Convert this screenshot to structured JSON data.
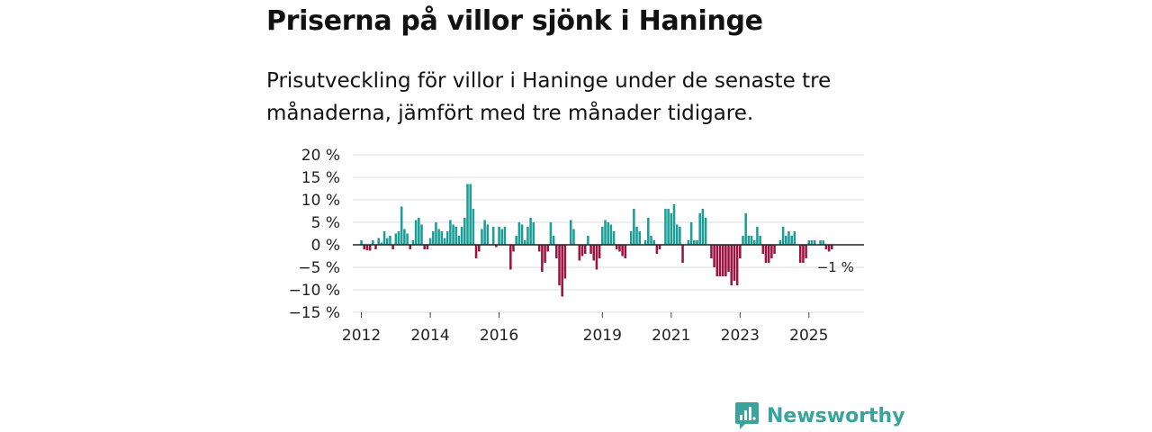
{
  "title": "Priserna på villor sjönk i Haninge",
  "subtitle": "Prisutveckling för villor i Haninge under de senaste tre månaderna, jämfört med tre månader tidigare.",
  "brand": "Newsworthy",
  "colors": {
    "positive": "#1a9e97",
    "negative": "#9c1442",
    "brand": "#3aa39e",
    "grid": "#dedede",
    "zero": "#222222"
  },
  "chart_data": {
    "type": "bar",
    "ylim": [
      -15,
      20
    ],
    "yticks": [
      20,
      15,
      10,
      5,
      0,
      -5,
      -10,
      -15
    ],
    "ytick_labels": [
      "20 %",
      "15 %",
      "10 %",
      "5 %",
      "0 %",
      "−5 %",
      "−10 %",
      "−15 %"
    ],
    "xlim": [
      2011.75,
      2026.6
    ],
    "xticks": [
      2012,
      2014,
      2016,
      2019,
      2021,
      2023,
      2025
    ],
    "xtick_labels": [
      "2012",
      "2014",
      "2016",
      "2019",
      "2021",
      "2023",
      "2025"
    ],
    "start": {
      "year": 2012,
      "month": 1
    },
    "values": [
      1,
      -1,
      -1.2,
      -1.3,
      1,
      -1,
      1.5,
      0.5,
      3,
      1.5,
      2,
      -1,
      2.5,
      3,
      8.5,
      3.5,
      2.5,
      -1,
      1,
      5.5,
      6,
      4.5,
      -1,
      -1,
      1.5,
      3,
      5,
      3.5,
      3,
      1.5,
      3,
      5.5,
      4.5,
      4,
      2,
      4,
      6,
      13.5,
      13.5,
      8,
      -3,
      -1.5,
      3.5,
      5.5,
      4.5,
      0,
      4,
      -0.5,
      4,
      3.5,
      4,
      0,
      -5.5,
      -1.5,
      2,
      5,
      4.5,
      1,
      4,
      6,
      5,
      0,
      -1.5,
      -6,
      -4,
      -1.5,
      5,
      2,
      -3,
      -9,
      -11.5,
      -7.5,
      0,
      5.5,
      3.5,
      0,
      -3.5,
      -2.5,
      -2,
      2,
      -2,
      -3.5,
      -5.5,
      -3,
      4,
      5.5,
      5,
      4.5,
      3,
      -1,
      -1.5,
      -2.5,
      -3,
      0,
      3,
      8,
      4,
      3,
      0,
      1,
      6,
      2,
      1,
      -2,
      -1,
      0,
      8,
      8,
      7,
      9,
      4.5,
      4,
      -4,
      0,
      1,
      5,
      1,
      1,
      7,
      8,
      6,
      0,
      -3,
      -5,
      -7,
      -7,
      -7,
      -7,
      -6,
      -9,
      -8,
      -9,
      -3,
      2,
      7,
      2,
      2,
      1,
      4,
      2,
      -2,
      -4,
      -4,
      -3,
      -2,
      0,
      1,
      4,
      2,
      3,
      2,
      3,
      0,
      -4,
      -4,
      -3,
      1,
      1,
      1,
      0,
      1,
      1,
      -1,
      -1.5,
      -1
    ],
    "last_label": "−1 %"
  }
}
